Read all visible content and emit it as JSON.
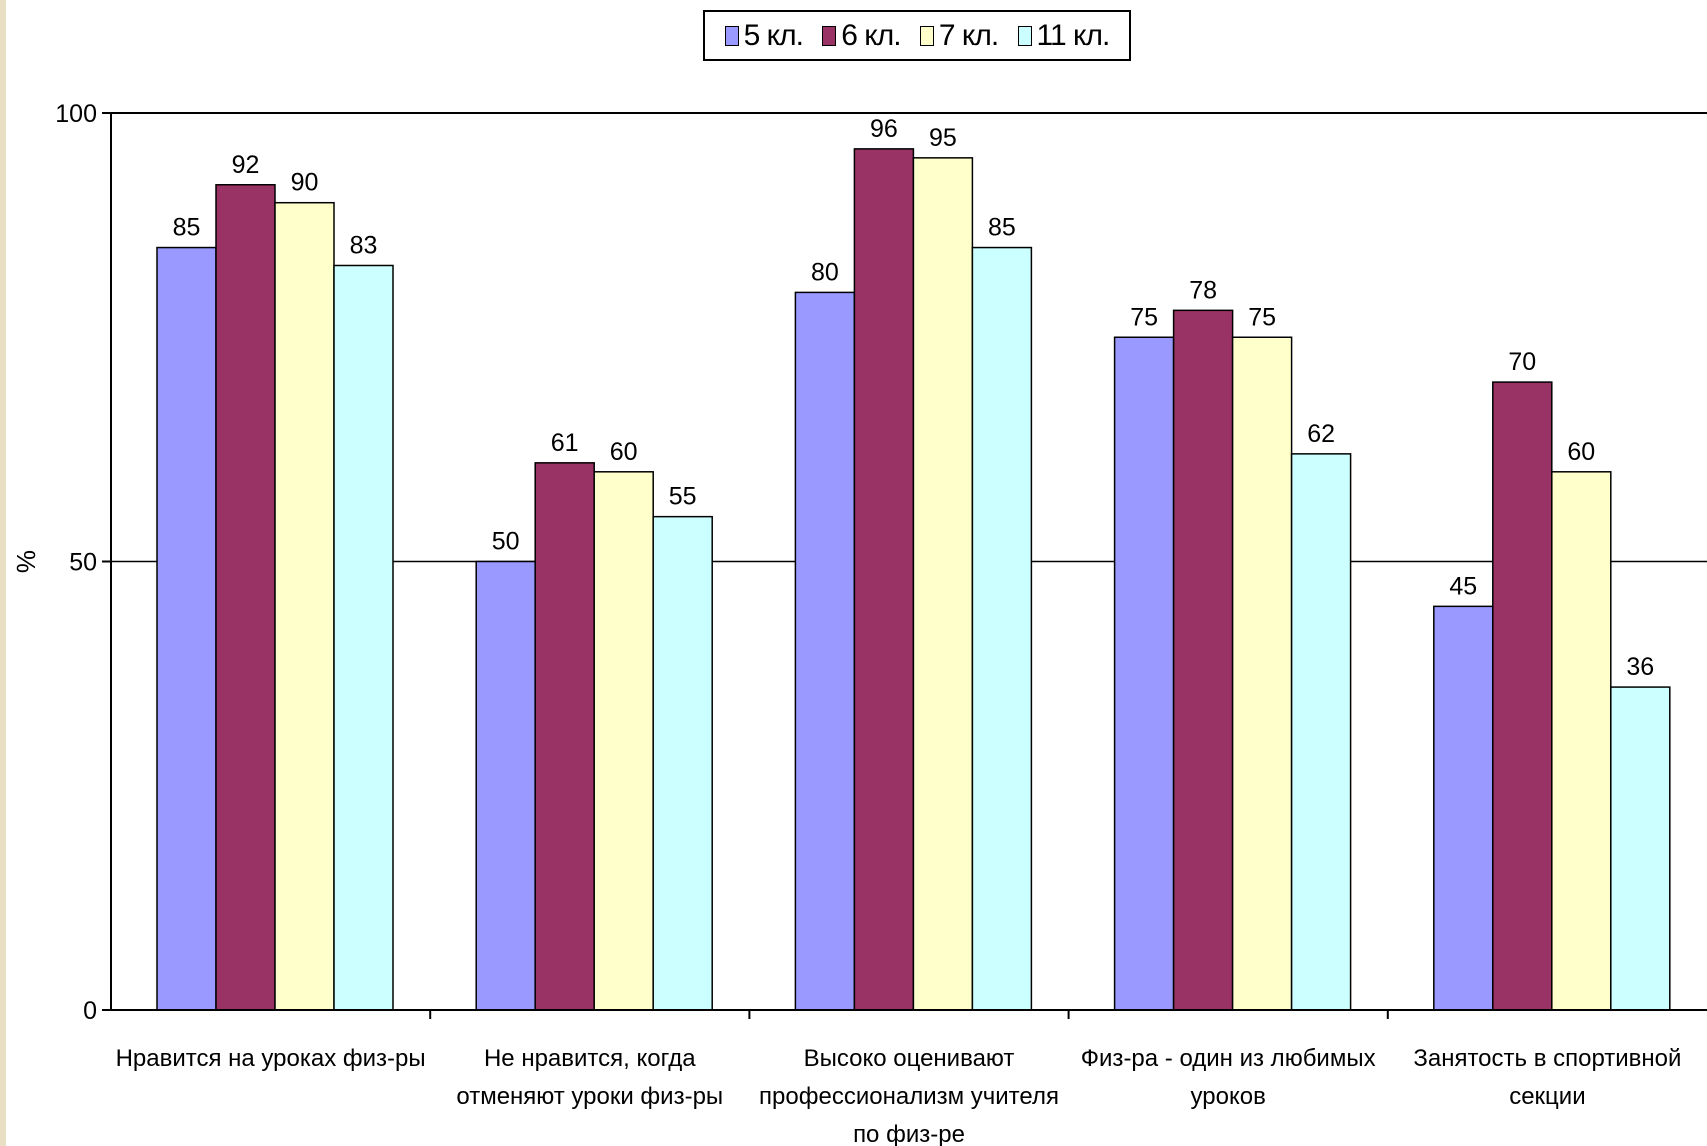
{
  "chart_data": {
    "type": "bar",
    "ylabel": "%",
    "ylim": [
      0,
      100
    ],
    "yticks": [
      "0",
      "50",
      "100"
    ],
    "grid": true,
    "legend_position": "top-center",
    "categories": [
      [
        "Нравится на уроках физ-ры"
      ],
      [
        "Не нравится, когда",
        "отменяют уроки физ-ры"
      ],
      [
        "Высоко оценивают",
        "профессионализм учителя",
        "по физ-ре"
      ],
      [
        "Физ-ра - один из любимых",
        "уроков"
      ],
      [
        "Занятость в спортивной",
        "секции"
      ]
    ],
    "series": [
      {
        "name": "5 кл.",
        "color": "#9999ff",
        "values": [
          85,
          50,
          80,
          75,
          45
        ]
      },
      {
        "name": "6 кл.",
        "color": "#993366",
        "values": [
          92,
          61,
          96,
          78,
          70
        ]
      },
      {
        "name": "7 кл.",
        "color": "#ffffcc",
        "values": [
          90,
          60,
          95,
          75,
          60
        ]
      },
      {
        "name": "11 кл.",
        "color": "#ccffff",
        "values": [
          83,
          55,
          85,
          62,
          36
        ]
      }
    ]
  }
}
